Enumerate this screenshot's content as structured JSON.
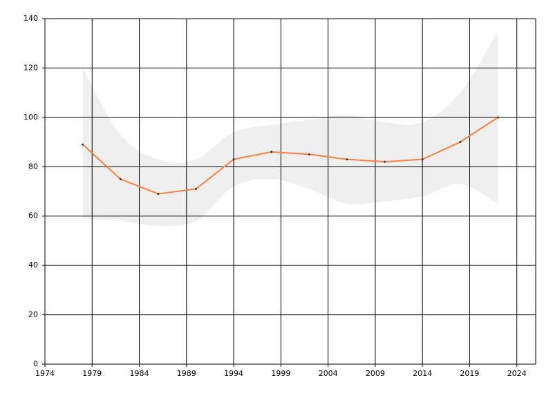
{
  "chart_data": {
    "type": "line",
    "x": [
      1978,
      1982,
      1986,
      1990,
      1994,
      1998,
      2002,
      2006,
      2010,
      2014,
      2018,
      2022
    ],
    "series": [
      {
        "color": "#ff7f3f",
        "values": [
          89,
          75,
          69,
          71,
          83,
          86,
          85,
          83,
          82,
          83,
          90,
          100
        ],
        "lower": [
          59,
          58,
          56,
          58,
          72,
          75,
          71,
          65,
          66,
          68,
          73,
          65
        ],
        "upper": [
          120,
          93,
          83,
          83,
          94,
          97,
          99,
          101,
          98,
          98,
          110,
          135
        ],
        "band_color": "#efefef"
      }
    ],
    "xlim": [
      1974,
      2026
    ],
    "xticks": [
      1974,
      1979,
      1984,
      1989,
      1994,
      1999,
      2004,
      2009,
      2014,
      2019,
      2024
    ],
    "ylim": [
      0,
      140
    ],
    "yticks": [
      0,
      20,
      40,
      60,
      80,
      100,
      120,
      140
    ],
    "grid": true
  }
}
